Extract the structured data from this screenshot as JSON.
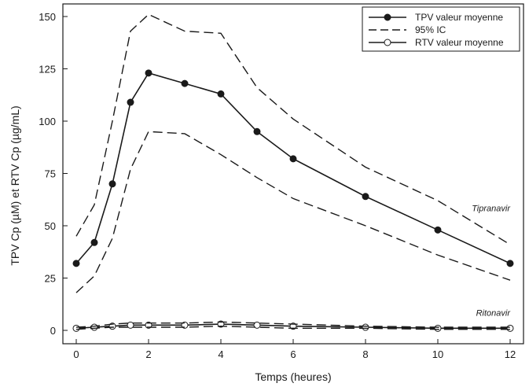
{
  "chart_data": {
    "type": "line",
    "xlabel": "Temps (heures)",
    "ylabel": "TPV Cp (µM)  et  RTV Cp (µg/mL)",
    "xlim": [
      0,
      12
    ],
    "ylim": [
      0,
      150
    ],
    "xticks": [
      0,
      2,
      4,
      6,
      8,
      10,
      12
    ],
    "yticks": [
      0,
      25,
      50,
      75,
      100,
      125,
      150
    ],
    "grid": false,
    "legend_position": "top-right",
    "series": [
      {
        "name": "TPV valeur moyenne",
        "style": "solid-filled-marker",
        "x": [
          0,
          0.5,
          1,
          1.5,
          2,
          3,
          4,
          5,
          6,
          8,
          10,
          12
        ],
        "y": [
          32,
          42,
          70,
          109,
          123,
          118,
          113,
          95,
          82,
          64,
          48,
          32
        ]
      },
      {
        "name": "95% IC",
        "style": "dashed",
        "x": [
          0,
          0.5,
          1,
          1.5,
          2,
          3,
          4,
          5,
          6,
          8,
          10,
          12
        ],
        "y": [
          45,
          60,
          100,
          143,
          151,
          143,
          142,
          116,
          101,
          78,
          62,
          41
        ]
      },
      {
        "name": "",
        "style": "dashed",
        "x": [
          0,
          0.5,
          1,
          1.5,
          2,
          3,
          4,
          5,
          6,
          8,
          10,
          12
        ],
        "y": [
          18,
          26,
          44,
          77,
          95,
          94,
          84,
          73,
          63,
          50,
          36,
          24
        ]
      },
      {
        "name": "RTV valeur moyenne",
        "style": "solid-open-marker",
        "x": [
          0,
          0.5,
          1,
          1.5,
          2,
          3,
          4,
          5,
          6,
          8,
          10,
          12
        ],
        "y": [
          1,
          1.5,
          2,
          2.5,
          2.5,
          2.5,
          3,
          2.5,
          2,
          1.5,
          1,
          1
        ]
      },
      {
        "name": "",
        "style": "dashed",
        "x": [
          0,
          0.5,
          1,
          1.5,
          2,
          3,
          4,
          5,
          6,
          8,
          10,
          12
        ],
        "y": [
          1.5,
          2,
          3,
          3.5,
          3.5,
          3.5,
          4,
          3.5,
          3,
          2,
          1.5,
          1.5
        ]
      },
      {
        "name": "",
        "style": "dashed",
        "x": [
          0,
          0.5,
          1,
          1.5,
          2,
          3,
          4,
          5,
          6,
          8,
          10,
          12
        ],
        "y": [
          0.5,
          1,
          1.5,
          1.5,
          1.5,
          1.5,
          2,
          1.5,
          1,
          1,
          0.5,
          0.5
        ]
      }
    ],
    "annotations": [
      {
        "text": "Tipranavir",
        "x": 12,
        "y": 57
      },
      {
        "text": "Ritonavir",
        "x": 12,
        "y": 7
      }
    ],
    "legend": [
      {
        "label": "TPV valeur moyenne",
        "style": "solid-filled-marker"
      },
      {
        "label": "95% IC",
        "style": "dashed"
      },
      {
        "label": "RTV valeur moyenne",
        "style": "solid-open-marker"
      }
    ],
    "colors": {
      "ink": "#1a1a1a",
      "background": "#ffffff"
    }
  }
}
